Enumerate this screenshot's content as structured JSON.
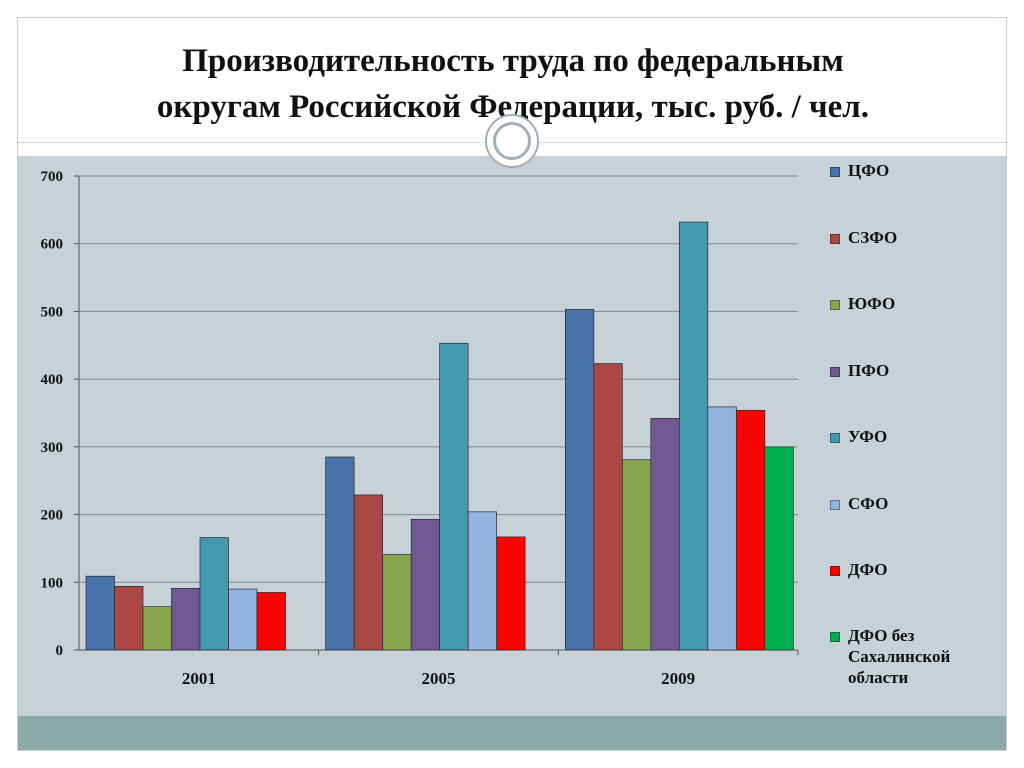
{
  "slide": {
    "title_line1": "Производительность труда по федеральным",
    "title_line2": "округам Российской Федерации, тыс. руб. / чел."
  },
  "chart_data": {
    "type": "bar",
    "title": "Производительность труда по федеральным округам Российской Федерации, тыс. руб. / чел.",
    "categories": [
      "2001",
      "2005",
      "2009"
    ],
    "ylim": [
      0,
      700
    ],
    "yticks": [
      0,
      100,
      200,
      300,
      400,
      500,
      600,
      700
    ],
    "grid": true,
    "legend_position": "right",
    "series": [
      {
        "name": "ЦФО",
        "color": "#4a72aa",
        "values": [
          109,
          285,
          503
        ]
      },
      {
        "name": "СЗФО",
        "color": "#ab4745",
        "values": [
          94,
          229,
          423
        ]
      },
      {
        "name": "ЮФО",
        "color": "#89a54e",
        "values": [
          64,
          141,
          281
        ]
      },
      {
        "name": "ПФО",
        "color": "#725792",
        "values": [
          91,
          193,
          342
        ]
      },
      {
        "name": "УФО",
        "color": "#4299b0",
        "values": [
          166,
          453,
          632
        ]
      },
      {
        "name": "СФО",
        "color": "#93b4e0",
        "values": [
          90,
          204,
          359
        ]
      },
      {
        "name": "ДФО",
        "color": "#ff0000",
        "values": [
          85,
          167,
          354
        ]
      },
      {
        "name": "ДФО без Сахалинской области",
        "color": "#00b050",
        "values": [
          null,
          null,
          300
        ]
      }
    ]
  }
}
